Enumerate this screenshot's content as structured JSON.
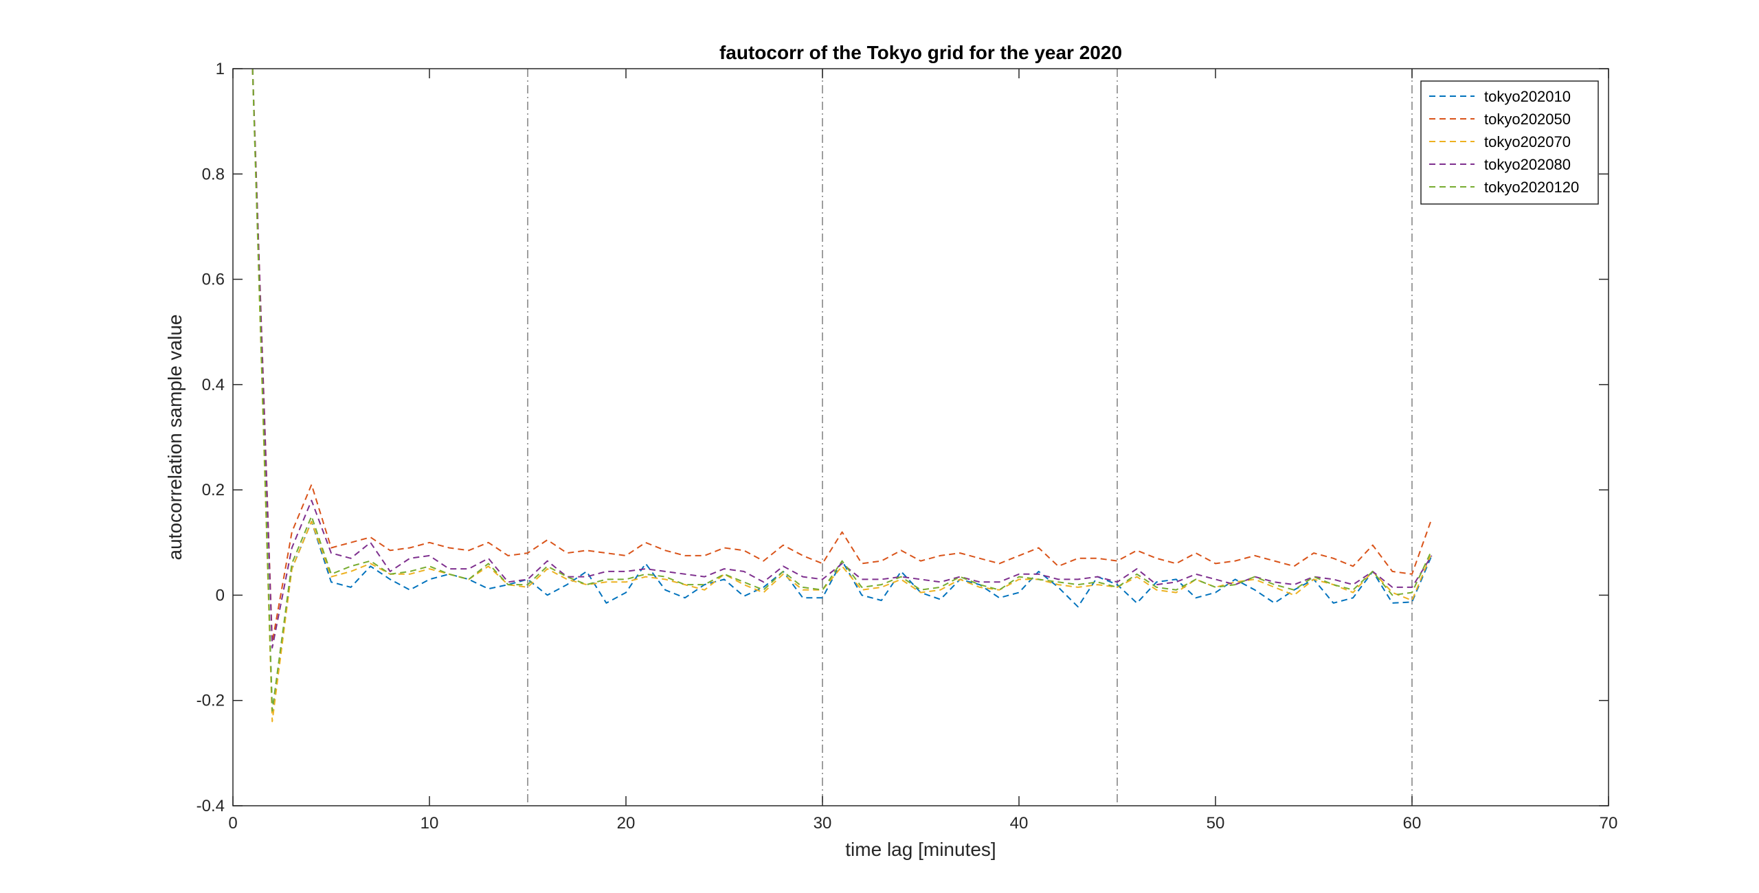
{
  "chart_data": {
    "type": "line",
    "title": "fautocorr of the Tokyo grid for the year 2020",
    "xlabel": "time lag [minutes]",
    "ylabel": "autocorrelation sample value",
    "xlim": [
      0,
      70
    ],
    "ylim": [
      -0.4,
      1
    ],
    "xticks": [
      0,
      10,
      20,
      30,
      40,
      50,
      60,
      70
    ],
    "xtick_labels": [
      "0",
      "10",
      "20",
      "30",
      "40",
      "50",
      "60",
      "70"
    ],
    "yticks": [
      -0.4,
      -0.2,
      0,
      0.2,
      0.4,
      0.6,
      0.8,
      1
    ],
    "ytick_labels": [
      "-0.4",
      "-0.2",
      "0",
      "0.2",
      "0.4",
      "0.6",
      "0.8",
      "1"
    ],
    "vertical_reference_lines": [
      15,
      30,
      45,
      60
    ],
    "grid": false,
    "legend_position": "top-right",
    "line_style": "dashed",
    "x": [
      1,
      2,
      3,
      4,
      5,
      6,
      7,
      8,
      9,
      10,
      11,
      12,
      13,
      14,
      15,
      16,
      17,
      18,
      19,
      20,
      21,
      22,
      23,
      24,
      25,
      26,
      27,
      28,
      29,
      30,
      31,
      32,
      33,
      34,
      35,
      36,
      37,
      38,
      39,
      40,
      41,
      42,
      43,
      44,
      45,
      46,
      47,
      48,
      49,
      50,
      51,
      52,
      53,
      54,
      55,
      56,
      57,
      58,
      59,
      60,
      61
    ],
    "series": [
      {
        "name": "tokyo202010",
        "color": "#0072BD",
        "values": [
          1,
          -0.22,
          0.05,
          0.14,
          0.025,
          0.015,
          0.055,
          0.03,
          0.01,
          0.03,
          0.04,
          0.03,
          0.012,
          0.02,
          0.03,
          0.0,
          0.02,
          0.045,
          -0.015,
          0.005,
          0.06,
          0.01,
          -0.005,
          0.02,
          0.03,
          -0.002,
          0.015,
          0.045,
          -0.005,
          -0.005,
          0.065,
          0.0,
          -0.01,
          0.045,
          0.005,
          -0.008,
          0.03,
          0.02,
          -0.005,
          0.005,
          0.045,
          0.015,
          -0.022,
          0.035,
          0.02,
          -0.015,
          0.025,
          0.03,
          -0.005,
          0.005,
          0.03,
          0.01,
          -0.015,
          0.01,
          0.03,
          -0.015,
          -0.005,
          0.045,
          -0.015,
          -0.013,
          0.075
        ]
      },
      {
        "name": "tokyo202050",
        "color": "#D95319",
        "values": [
          1,
          -0.09,
          0.12,
          0.21,
          0.09,
          0.1,
          0.11,
          0.085,
          0.09,
          0.1,
          0.09,
          0.085,
          0.1,
          0.075,
          0.08,
          0.105,
          0.08,
          0.085,
          0.08,
          0.075,
          0.1,
          0.085,
          0.075,
          0.075,
          0.09,
          0.085,
          0.065,
          0.095,
          0.075,
          0.06,
          0.12,
          0.06,
          0.065,
          0.085,
          0.065,
          0.075,
          0.08,
          0.07,
          0.06,
          0.075,
          0.09,
          0.055,
          0.07,
          0.07,
          0.065,
          0.085,
          0.07,
          0.06,
          0.08,
          0.06,
          0.065,
          0.075,
          0.065,
          0.055,
          0.08,
          0.07,
          0.055,
          0.095,
          0.045,
          0.04,
          0.145
        ]
      },
      {
        "name": "tokyo202070",
        "color": "#EDB120",
        "values": [
          1,
          -0.24,
          0.05,
          0.14,
          0.035,
          0.045,
          0.06,
          0.04,
          0.04,
          0.05,
          0.04,
          0.03,
          0.055,
          0.02,
          0.015,
          0.05,
          0.03,
          0.02,
          0.025,
          0.025,
          0.035,
          0.03,
          0.02,
          0.01,
          0.04,
          0.02,
          0.005,
          0.04,
          0.01,
          0.01,
          0.055,
          0.01,
          0.015,
          0.03,
          0.005,
          0.01,
          0.03,
          0.015,
          0.01,
          0.03,
          0.03,
          0.02,
          0.015,
          0.02,
          0.015,
          0.035,
          0.01,
          0.005,
          0.03,
          0.015,
          0.025,
          0.03,
          0.015,
          0.0,
          0.03,
          0.02,
          0.005,
          0.045,
          0.005,
          -0.01,
          0.08
        ]
      },
      {
        "name": "tokyo202080",
        "color": "#7E2F8E",
        "values": [
          1,
          -0.1,
          0.09,
          0.18,
          0.08,
          0.07,
          0.1,
          0.045,
          0.07,
          0.075,
          0.05,
          0.05,
          0.07,
          0.025,
          0.03,
          0.065,
          0.035,
          0.035,
          0.045,
          0.045,
          0.05,
          0.045,
          0.04,
          0.035,
          0.05,
          0.045,
          0.025,
          0.055,
          0.035,
          0.03,
          0.06,
          0.03,
          0.03,
          0.035,
          0.03,
          0.025,
          0.035,
          0.025,
          0.025,
          0.04,
          0.04,
          0.03,
          0.03,
          0.035,
          0.025,
          0.05,
          0.02,
          0.025,
          0.04,
          0.03,
          0.02,
          0.035,
          0.025,
          0.02,
          0.035,
          0.03,
          0.02,
          0.045,
          0.015,
          0.015,
          0.075
        ]
      },
      {
        "name": "tokyo2020120",
        "color": "#77AC30",
        "values": [
          1,
          -0.22,
          0.06,
          0.15,
          0.04,
          0.055,
          0.065,
          0.04,
          0.045,
          0.055,
          0.04,
          0.03,
          0.06,
          0.02,
          0.02,
          0.055,
          0.035,
          0.02,
          0.03,
          0.03,
          0.04,
          0.035,
          0.02,
          0.02,
          0.04,
          0.025,
          0.01,
          0.045,
          0.015,
          0.01,
          0.065,
          0.015,
          0.02,
          0.035,
          0.01,
          0.015,
          0.035,
          0.02,
          0.01,
          0.035,
          0.03,
          0.025,
          0.02,
          0.025,
          0.015,
          0.04,
          0.015,
          0.01,
          0.03,
          0.015,
          0.02,
          0.035,
          0.02,
          0.01,
          0.035,
          0.02,
          0.01,
          0.045,
          0.0,
          0.005,
          0.085
        ]
      }
    ]
  }
}
